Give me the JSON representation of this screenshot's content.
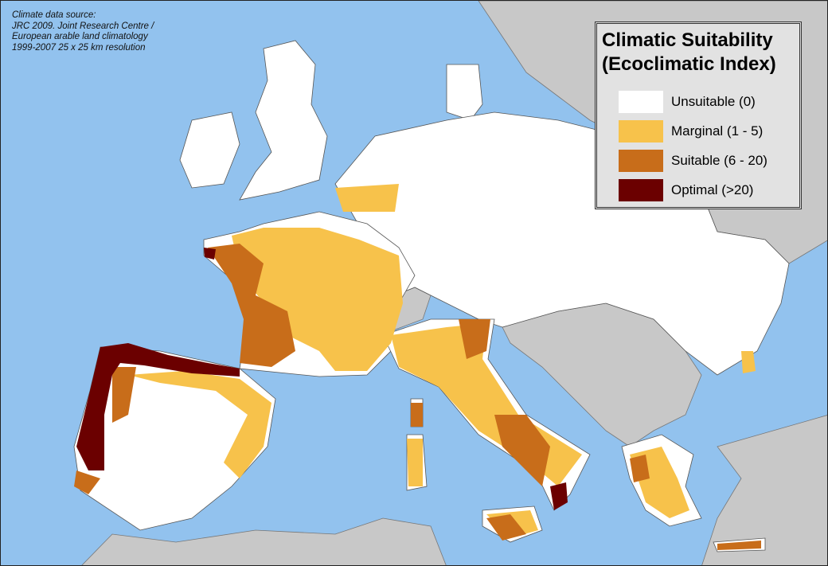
{
  "source_note": [
    "Climate data source:",
    "JRC 2009. Joint Research Centre  /",
    "European arable land climatology",
    "1999-2007 25 x 25 km resolution"
  ],
  "legend": {
    "title_line1": "Climatic Suitability",
    "title_line2": "(Ecoclimatic Index)",
    "items": [
      {
        "label": "Unsuitable (0)",
        "color": "#ffffff"
      },
      {
        "label": "Marginal (1 - 5)",
        "color": "#f7c24b"
      },
      {
        "label": "Suitable (6 - 20)",
        "color": "#c86d1a"
      },
      {
        "label": "Optimal (>20)",
        "color": "#6b0000"
      }
    ]
  },
  "colors": {
    "sea": "#92c2ee",
    "study_land": "#ffffff",
    "other_land": "#c8c8c8",
    "border": "#555555"
  }
}
